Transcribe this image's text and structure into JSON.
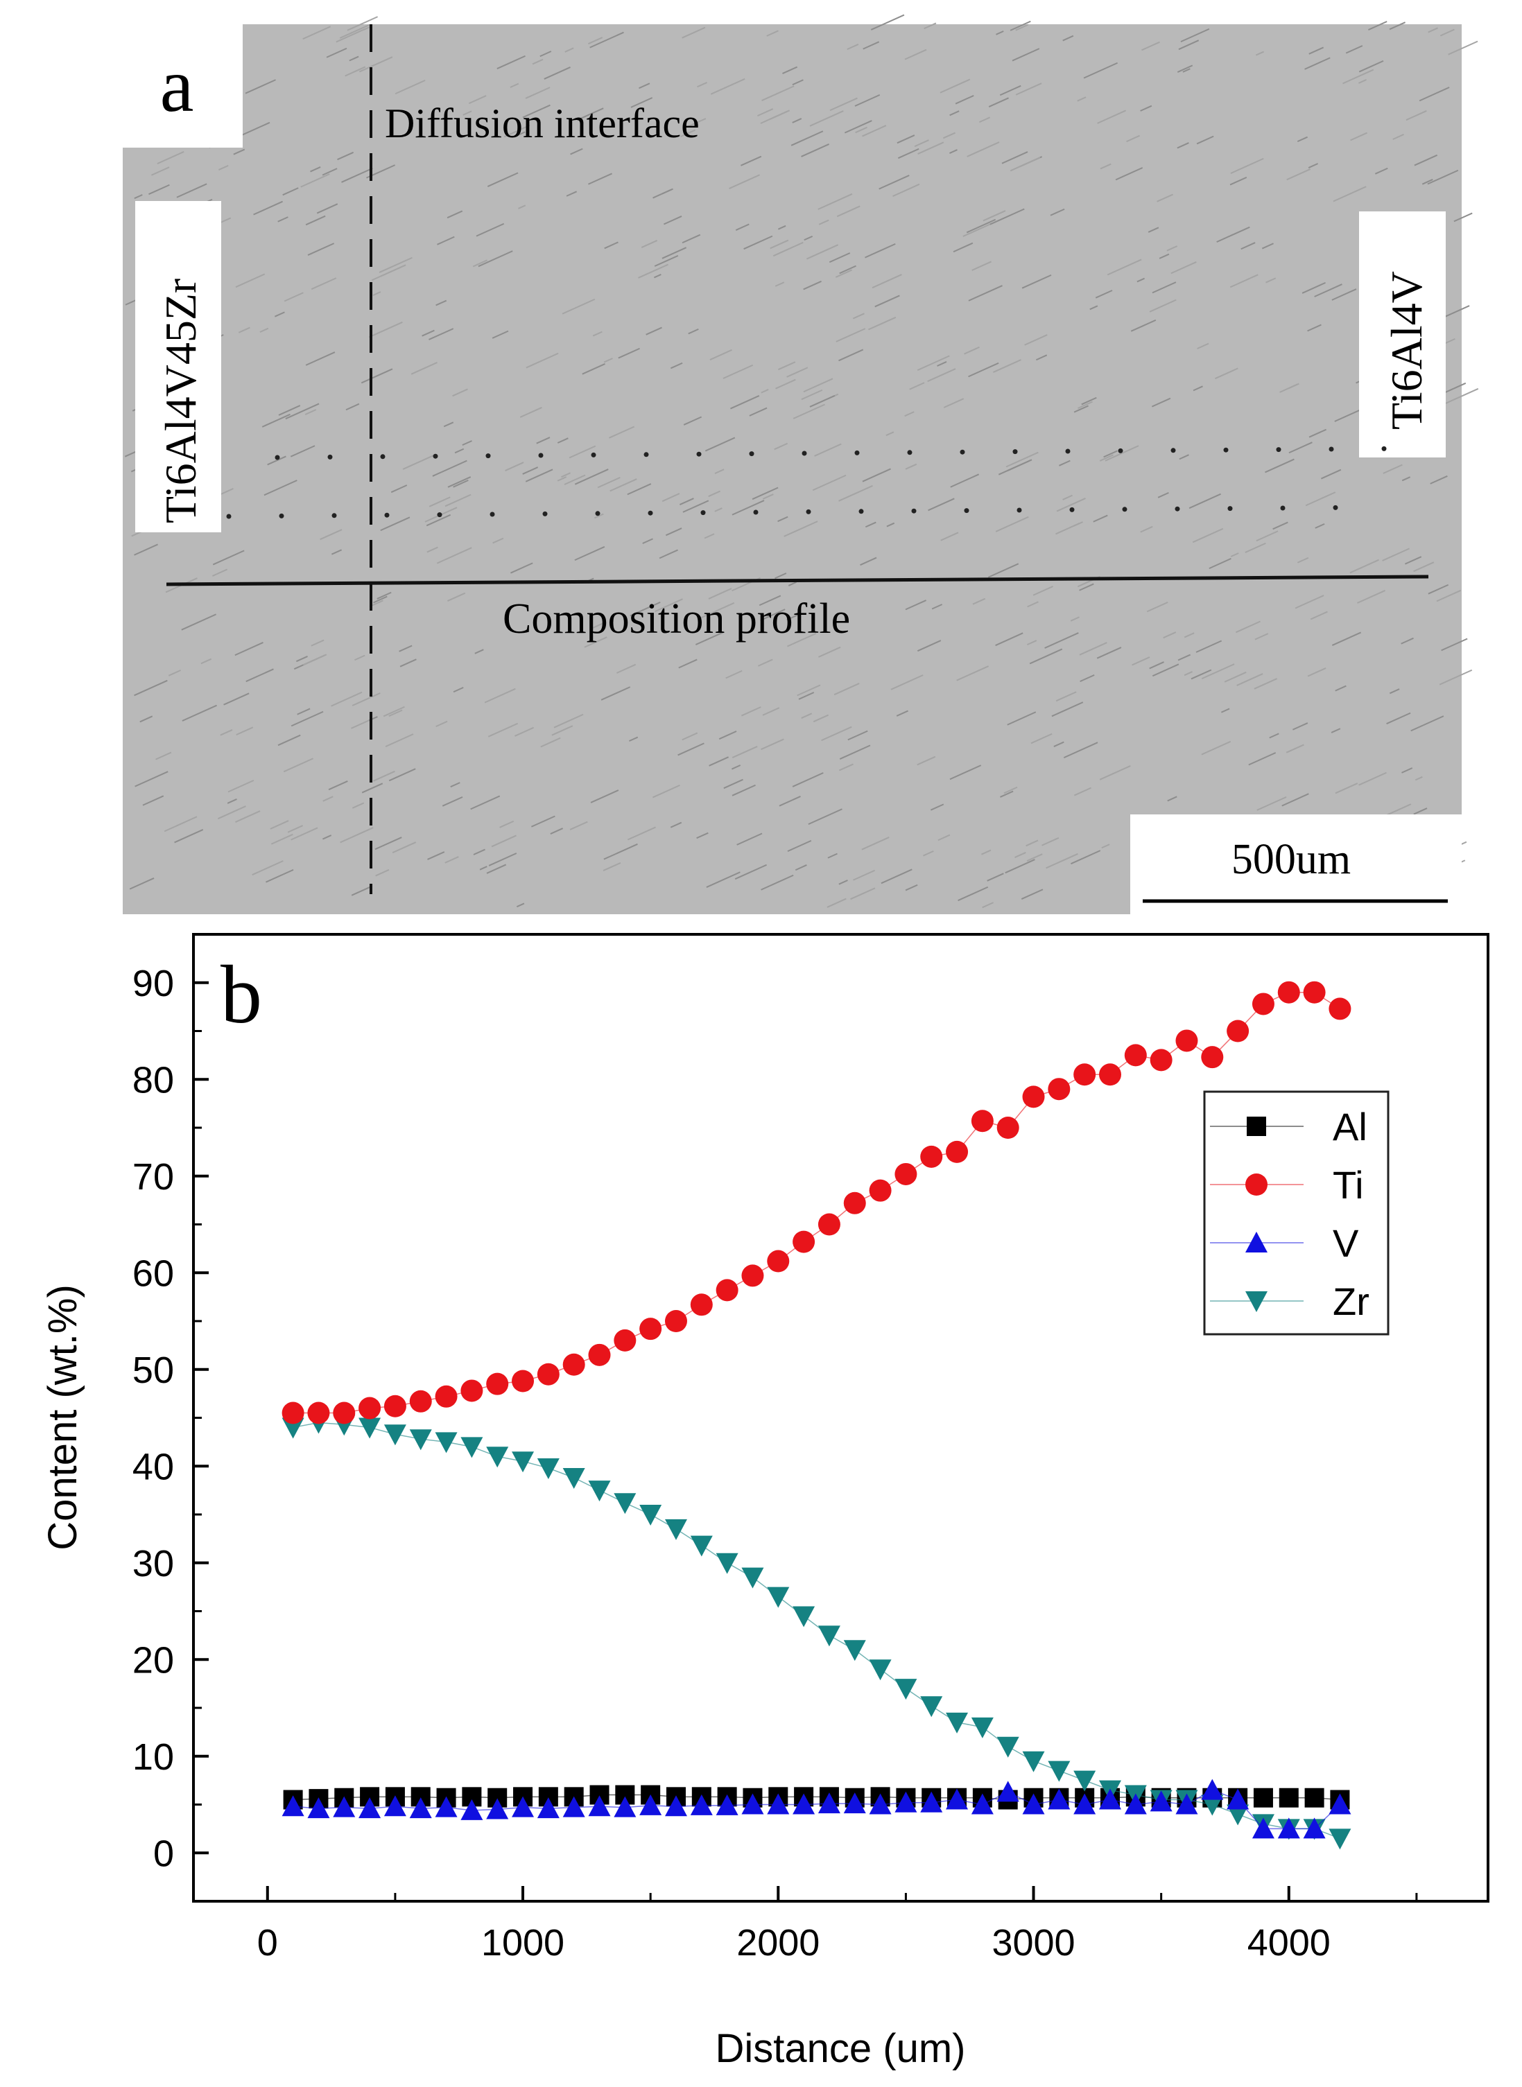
{
  "panel_a": {
    "label": "a",
    "interface_label": "Diffusion interface",
    "left_alloy": "Ti6Al4V45Zr",
    "right_alloy": "Ti6Al4V",
    "profile_label": "Composition profile",
    "scale_bar": "500um"
  },
  "chart_data": {
    "type": "scatter",
    "panel_label": "b",
    "title": "",
    "xlabel": "Distance (um)",
    "ylabel": "Content (wt.%)",
    "xlim": [
      -290,
      4780
    ],
    "ylim": [
      -5,
      95
    ],
    "xticks": [
      0,
      1000,
      2000,
      3000,
      4000
    ],
    "yticks": [
      0,
      10,
      20,
      30,
      40,
      50,
      60,
      70,
      80,
      90
    ],
    "grid": false,
    "legend_position": "top-right",
    "x": [
      100,
      200,
      300,
      400,
      500,
      600,
      700,
      800,
      900,
      1000,
      1100,
      1200,
      1300,
      1400,
      1500,
      1600,
      1700,
      1800,
      1900,
      2000,
      2100,
      2200,
      2300,
      2400,
      2500,
      2600,
      2700,
      2800,
      2900,
      3000,
      3100,
      3200,
      3300,
      3400,
      3500,
      3600,
      3700,
      3800,
      3900,
      4000,
      4100,
      4200
    ],
    "series": [
      {
        "name": "Al",
        "marker": "square",
        "color": "#000000",
        "values": [
          5.5,
          5.6,
          5.7,
          5.8,
          5.8,
          5.8,
          5.7,
          5.8,
          5.7,
          5.8,
          5.8,
          5.8,
          6.0,
          6.0,
          6.0,
          5.8,
          5.8,
          5.8,
          5.7,
          5.8,
          5.8,
          5.8,
          5.7,
          5.8,
          5.7,
          5.7,
          5.7,
          5.7,
          5.5,
          5.7,
          5.7,
          5.7,
          5.7,
          5.8,
          5.7,
          5.7,
          5.7,
          5.7,
          5.7,
          5.7,
          5.7,
          5.5
        ]
      },
      {
        "name": "Ti",
        "marker": "circle",
        "color": "#e8141a",
        "values": [
          45.5,
          45.5,
          45.5,
          46.0,
          46.2,
          46.7,
          47.2,
          47.8,
          48.5,
          48.8,
          49.5,
          50.5,
          51.5,
          53.0,
          54.2,
          55.0,
          56.7,
          58.2,
          59.7,
          61.2,
          63.2,
          65.0,
          67.2,
          68.5,
          70.2,
          72.0,
          72.5,
          75.7,
          75.0,
          78.2,
          79.0,
          80.5,
          80.5,
          82.5,
          82.0,
          84.0,
          82.3,
          85.0,
          87.8,
          89.0,
          89.0,
          87.3
        ]
      },
      {
        "name": "V",
        "marker": "triangle-up",
        "color": "#1010e0",
        "values": [
          4.8,
          4.6,
          4.7,
          4.6,
          4.8,
          4.6,
          4.7,
          4.4,
          4.5,
          4.7,
          4.6,
          4.7,
          4.8,
          4.7,
          4.9,
          4.8,
          4.9,
          4.9,
          5.0,
          5.0,
          5.0,
          5.1,
          5.1,
          5.0,
          5.2,
          5.2,
          5.5,
          5.0,
          6.3,
          5.0,
          5.5,
          5.0,
          5.5,
          5.0,
          5.3,
          5.0,
          6.5,
          5.5,
          2.5,
          2.5,
          2.5,
          5.0
        ]
      },
      {
        "name": "Zr",
        "marker": "triangle-down",
        "color": "#158282",
        "values": [
          44.0,
          44.5,
          44.3,
          44.0,
          43.3,
          42.8,
          42.5,
          42.0,
          41.0,
          40.5,
          39.8,
          38.8,
          37.5,
          36.2,
          35.0,
          33.5,
          31.8,
          30.0,
          28.5,
          26.5,
          24.5,
          22.5,
          21.0,
          19.0,
          17.0,
          15.2,
          13.5,
          13.0,
          11.0,
          9.5,
          8.5,
          7.5,
          6.5,
          6.0,
          5.5,
          5.5,
          5.0,
          4.0,
          3.0,
          2.5,
          2.5,
          1.5
        ]
      }
    ]
  }
}
